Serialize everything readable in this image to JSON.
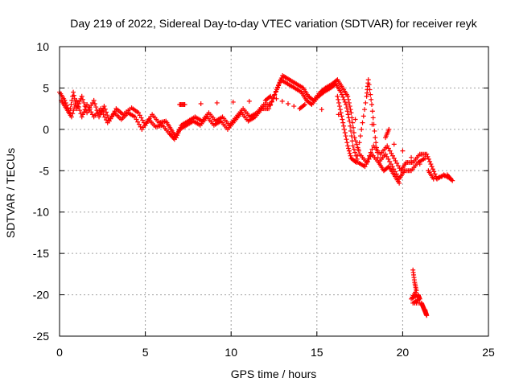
{
  "chart_data": {
    "type": "scatter",
    "title": "Day 219 of 2022, Sidereal Day-to-day VTEC variation (SDTVAR) for receiver reyk",
    "xlabel": "GPS time / hours",
    "ylabel": "SDTVAR / TECUs",
    "xlim": [
      0,
      25
    ],
    "ylim": [
      -25,
      10
    ],
    "xticks": [
      0,
      5,
      10,
      15,
      20,
      25
    ],
    "yticks": [
      -25,
      -20,
      -15,
      -10,
      -5,
      0,
      5,
      10
    ],
    "grid": true,
    "marker": "plus",
    "series": [
      {
        "name": "SDTVAR",
        "color": "#ff0000",
        "tracks": [
          [
            [
              0.0,
              4.5
            ],
            [
              0.3,
              3.5
            ],
            [
              0.6,
              2.0
            ],
            [
              0.8,
              4.5
            ],
            [
              1.0,
              2.5
            ],
            [
              1.3,
              4.0
            ],
            [
              1.6,
              2.0
            ],
            [
              2.0,
              3.5
            ],
            [
              2.3,
              1.5
            ],
            [
              2.6,
              2.8
            ],
            [
              2.9,
              1.0
            ],
            [
              3.3,
              2.5
            ],
            [
              3.7,
              1.8
            ],
            [
              4.2,
              2.6
            ],
            [
              4.6,
              2.0
            ],
            [
              5.0,
              0.5
            ],
            [
              5.4,
              1.8
            ],
            [
              5.8,
              0.8
            ],
            [
              6.2,
              1.0
            ],
            [
              6.5,
              0.0
            ],
            [
              6.8,
              -1.0
            ],
            [
              7.1,
              0.5
            ],
            [
              7.5,
              1.0
            ],
            [
              7.9,
              1.5
            ],
            [
              8.3,
              1.0
            ],
            [
              8.7,
              2.0
            ],
            [
              9.1,
              1.0
            ],
            [
              9.5,
              1.5
            ],
            [
              9.9,
              0.5
            ],
            [
              10.3,
              1.5
            ],
            [
              10.7,
              2.5
            ],
            [
              11.1,
              1.5
            ],
            [
              11.5,
              2.0
            ],
            [
              11.9,
              3.0
            ],
            [
              12.3,
              3.0
            ],
            [
              12.7,
              5.0
            ],
            [
              13.0,
              6.5
            ],
            [
              13.4,
              6.0
            ],
            [
              13.8,
              5.5
            ],
            [
              14.2,
              5.0
            ],
            [
              14.5,
              4.0
            ],
            [
              14.8,
              3.5
            ],
            [
              15.2,
              4.5
            ],
            [
              15.5,
              5.0
            ],
            [
              15.9,
              5.5
            ],
            [
              16.2,
              6.0
            ],
            [
              16.5,
              5.0
            ],
            [
              16.8,
              4.0
            ],
            [
              17.0,
              2.0
            ],
            [
              17.2,
              -1.0
            ],
            [
              17.5,
              -3.0
            ],
            [
              17.9,
              -4.0
            ],
            [
              18.3,
              -2.0
            ],
            [
              18.7,
              -3.0
            ],
            [
              19.1,
              -2.0
            ],
            [
              19.5,
              -3.5
            ],
            [
              19.9,
              -5.0
            ],
            [
              20.2,
              -4.0
            ],
            [
              20.6,
              -4.0
            ],
            [
              21.0,
              -3.0
            ],
            [
              21.4,
              -3.0
            ],
            [
              21.7,
              -4.5
            ],
            [
              22.0,
              -6.0
            ],
            [
              22.4,
              -5.5
            ],
            [
              22.8,
              -6.0
            ]
          ],
          [
            [
              0.1,
              3.5
            ],
            [
              0.4,
              2.5
            ],
            [
              0.7,
              1.5
            ],
            [
              1.0,
              3.5
            ],
            [
              1.3,
              1.5
            ],
            [
              1.6,
              3.0
            ],
            [
              2.0,
              1.5
            ],
            [
              2.4,
              2.5
            ],
            [
              2.8,
              0.8
            ],
            [
              3.2,
              2.0
            ],
            [
              3.6,
              1.2
            ],
            [
              4.0,
              2.0
            ],
            [
              4.4,
              1.5
            ],
            [
              4.8,
              0.0
            ],
            [
              5.2,
              1.2
            ],
            [
              5.6,
              0.3
            ],
            [
              6.0,
              0.5
            ],
            [
              6.4,
              -0.5
            ],
            [
              6.7,
              -1.2
            ],
            [
              7.0,
              0.0
            ],
            [
              7.4,
              0.5
            ],
            [
              7.8,
              1.0
            ],
            [
              8.2,
              0.5
            ],
            [
              8.6,
              1.5
            ],
            [
              9.0,
              0.5
            ],
            [
              9.4,
              1.0
            ],
            [
              9.8,
              0.0
            ],
            [
              10.2,
              1.0
            ],
            [
              10.6,
              2.0
            ],
            [
              11.0,
              1.0
            ],
            [
              11.4,
              1.5
            ],
            [
              11.8,
              2.5
            ],
            [
              12.2,
              2.5
            ],
            [
              12.6,
              4.5
            ],
            [
              12.9,
              6.0
            ],
            [
              13.3,
              5.5
            ],
            [
              13.7,
              5.0
            ],
            [
              14.1,
              4.5
            ],
            [
              14.4,
              3.5
            ],
            [
              14.7,
              3.0
            ],
            [
              15.1,
              4.0
            ],
            [
              15.4,
              4.5
            ],
            [
              15.8,
              5.0
            ],
            [
              16.1,
              5.5
            ],
            [
              16.4,
              4.5
            ],
            [
              16.7,
              3.0
            ],
            [
              16.9,
              1.0
            ],
            [
              17.1,
              -2.0
            ],
            [
              17.4,
              -4.0
            ],
            [
              17.8,
              -4.5
            ],
            [
              18.2,
              -3.0
            ],
            [
              18.6,
              -4.0
            ],
            [
              19.0,
              -3.0
            ],
            [
              19.4,
              -4.5
            ],
            [
              19.8,
              -6.0
            ],
            [
              20.1,
              -5.0
            ],
            [
              20.5,
              -5.0
            ],
            [
              20.9,
              -4.0
            ],
            [
              21.3,
              -3.5
            ]
          ],
          [
            [
              16.2,
              4.0
            ],
            [
              16.4,
              2.0
            ],
            [
              16.6,
              0.0
            ],
            [
              16.8,
              -2.0
            ],
            [
              17.0,
              -3.5
            ],
            [
              17.3,
              -4.0
            ],
            [
              17.6,
              0.0
            ],
            [
              17.9,
              4.0
            ],
            [
              18.0,
              6.0
            ],
            [
              18.2,
              3.0
            ],
            [
              18.4,
              -1.0
            ],
            [
              18.6,
              -4.0
            ],
            [
              18.9,
              -5.0
            ],
            [
              19.2,
              -4.5
            ],
            [
              19.5,
              -5.5
            ],
            [
              19.8,
              -6.5
            ]
          ],
          [
            [
              7.0,
              3.0
            ],
            [
              7.3,
              3.0
            ],
            [
              12.0,
              3.5
            ],
            [
              12.3,
              4.0
            ],
            [
              14.0,
              2.5
            ],
            [
              14.3,
              3.0
            ],
            [
              19.2,
              0.0
            ],
            [
              19.0,
              -1.0
            ],
            [
              21.5,
              -5.0
            ],
            [
              21.8,
              -6.0
            ],
            [
              22.6,
              -5.5
            ],
            [
              22.9,
              -6.2
            ]
          ],
          [
            [
              20.6,
              -17.0
            ],
            [
              20.7,
              -18.5
            ],
            [
              20.8,
              -19.5
            ],
            [
              20.5,
              -20.5
            ],
            [
              20.9,
              -20.0
            ],
            [
              21.0,
              -20.5
            ],
            [
              20.6,
              -21.0
            ],
            [
              21.1,
              -21.0
            ],
            [
              21.2,
              -21.5
            ],
            [
              21.3,
              -22.0
            ],
            [
              21.4,
              -22.5
            ],
            [
              21.3,
              -21.8
            ]
          ]
        ]
      }
    ]
  }
}
